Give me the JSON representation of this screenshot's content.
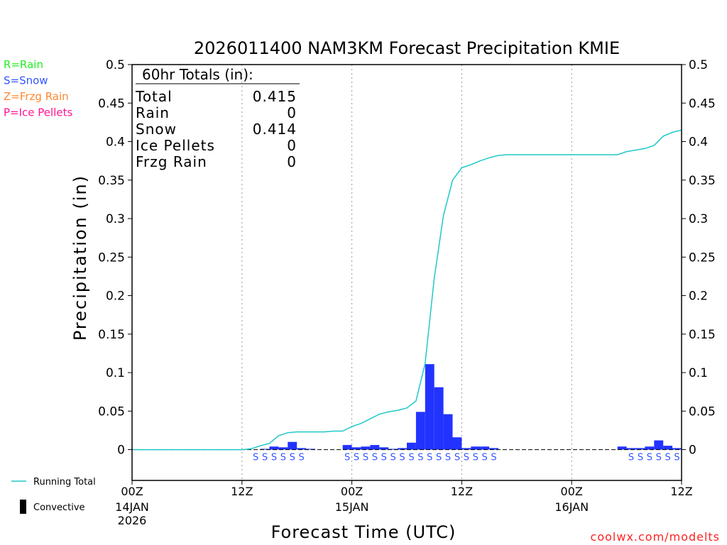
{
  "chart_data": {
    "type": "bar",
    "title": "2026011400 NAM3KM Forecast Precipitation KMIE",
    "xlabel": "Forecast Time (UTC)",
    "ylabel": "Precipitation (in)",
    "ylim": [
      -0.04,
      0.5
    ],
    "xlim_hours": [
      0,
      60
    ],
    "y_ticks": [
      "0",
      "0.05",
      "0.1",
      "0.15",
      "0.2",
      "0.25",
      "0.3",
      "0.35",
      "0.4",
      "0.45",
      "0.5"
    ],
    "y_tick_values": [
      0,
      0.05,
      0.1,
      0.15,
      0.2,
      0.25,
      0.3,
      0.35,
      0.4,
      0.45,
      0.5
    ],
    "x_ticks": [
      {
        "hour": 0,
        "label": "00Z",
        "sub": [
          "14JAN",
          "2026"
        ]
      },
      {
        "hour": 12,
        "label": "12Z",
        "sub": []
      },
      {
        "hour": 24,
        "label": "00Z",
        "sub": [
          "15JAN"
        ]
      },
      {
        "hour": 36,
        "label": "12Z",
        "sub": []
      },
      {
        "hour": 48,
        "label": "00Z",
        "sub": [
          "16JAN"
        ]
      },
      {
        "hour": 60,
        "label": "12Z",
        "sub": []
      }
    ],
    "gridlines_hours": [
      12,
      24,
      36,
      48
    ],
    "bar_color": "#2233ff",
    "line_color": "#20c8c8",
    "hourly_precip": {
      "hours": [
        15,
        16,
        17,
        18,
        19,
        20,
        24,
        25,
        26,
        27,
        28,
        29,
        30,
        31,
        32,
        33,
        34,
        35,
        36,
        37,
        38,
        39,
        40,
        54,
        55,
        56,
        57,
        58,
        59,
        60
      ],
      "values": [
        0.001,
        0.004,
        0.003,
        0.01,
        0.002,
        0.001,
        0.006,
        0.003,
        0.004,
        0.006,
        0.003,
        0.001,
        0.002,
        0.009,
        0.049,
        0.111,
        0.081,
        0.046,
        0.016,
        0.002,
        0.004,
        0.004,
        0.002,
        0.004,
        0.002,
        0.002,
        0.004,
        0.012,
        0.005,
        0.002
      ]
    },
    "running_total": {
      "name": "Running Total",
      "hours": [
        0,
        12,
        13,
        14,
        15,
        16,
        17,
        18,
        19,
        20,
        21,
        22,
        23,
        24,
        25,
        26,
        27,
        28,
        29,
        30,
        31,
        32,
        33,
        34,
        35,
        36,
        37,
        38,
        39,
        40,
        41,
        42,
        43,
        44,
        45,
        46,
        47,
        48,
        49,
        50,
        51,
        52,
        53,
        54,
        55,
        56,
        57,
        58,
        59,
        60
      ],
      "values": [
        0,
        0,
        0.001,
        0.005,
        0.008,
        0.018,
        0.022,
        0.023,
        0.023,
        0.023,
        0.023,
        0.024,
        0.024,
        0.03,
        0.034,
        0.04,
        0.046,
        0.049,
        0.051,
        0.054,
        0.063,
        0.112,
        0.223,
        0.304,
        0.35,
        0.366,
        0.37,
        0.375,
        0.379,
        0.382,
        0.383,
        0.383,
        0.383,
        0.383,
        0.383,
        0.383,
        0.383,
        0.383,
        0.383,
        0.383,
        0.383,
        0.383,
        0.383,
        0.387,
        0.389,
        0.391,
        0.395,
        0.407,
        0.412,
        0.415
      ]
    },
    "precip_type": {
      "symbol": "S",
      "hours": [
        14,
        15,
        16,
        17,
        18,
        19,
        24,
        25,
        26,
        27,
        28,
        29,
        30,
        31,
        32,
        33,
        34,
        35,
        36,
        37,
        38,
        39,
        40,
        55,
        56,
        57,
        58,
        59,
        60
      ]
    },
    "totals_box": {
      "header": "60hr Totals (in):",
      "rows": [
        {
          "label": "Total",
          "value": "0.415"
        },
        {
          "label": "Rain",
          "value": "0"
        },
        {
          "label": "Snow",
          "value": "0.414"
        },
        {
          "label": "Ice Pellets",
          "value": "0"
        },
        {
          "label": "Frzg Rain",
          "value": "0"
        }
      ]
    },
    "type_legend": [
      {
        "label": "R=Rain",
        "color": "#22ee22"
      },
      {
        "label": "S=Snow",
        "color": "#3355ff"
      },
      {
        "label": "Z=Frzg Rain",
        "color": "#ff8833"
      },
      {
        "label": "P=Ice Pellets",
        "color": "#ff1493"
      }
    ],
    "series_legend": [
      {
        "label": "Running Total",
        "kind": "line",
        "color": "#20c8c8"
      },
      {
        "label": "Convective",
        "kind": "bar",
        "color": "#000000"
      }
    ],
    "credit": "coolwx.com/modelts",
    "credit_color": "#ff2222"
  }
}
